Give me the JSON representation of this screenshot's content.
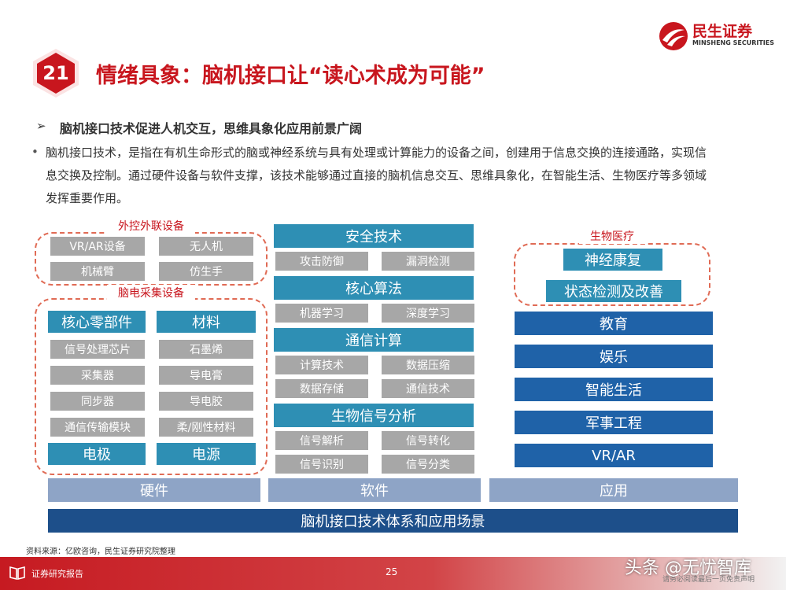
{
  "header": {
    "brand_cn": "民生证券",
    "brand_en": "MINSHENG SECURITIES",
    "colors": {
      "brand_red": "#c8161e"
    }
  },
  "title": {
    "number": "21",
    "text": "情绪具象：脑机接口让“读心术成为可能”"
  },
  "subheading": {
    "marker": "➢",
    "text": "脑机接口技术促进人机交互，思维具象化应用前景广阔"
  },
  "bullet": {
    "marker": "•",
    "text": "脑机接口技术，是指在有机生命形式的脑或神经系统与具有处理或计算能力的设备之间，创建用于信息交换的连接通路，实现信息交换及控制。通过硬件设备与软件支撑，该技术能够通过直接的脑机信息交互、思维具象化，在智能生活、生物医疗等多领域发挥重要作用。"
  },
  "diagram": {
    "external": {
      "label": "外控外联设备",
      "items": [
        "VR/AR设备",
        "无人机",
        "机械臂",
        "仿生手"
      ]
    },
    "eeg": {
      "label": "脑电采集设备",
      "col1_header": "核心零部件",
      "col1_items": [
        "信号处理芯片",
        "采集器",
        "同步器",
        "通信传输模块"
      ],
      "col1_footer": "电极",
      "col2_header": "材料",
      "col2_items": [
        "石墨烯",
        "导电膏",
        "导电胶",
        "柔/刚性材料"
      ],
      "col2_footer": "电源"
    },
    "software": [
      {
        "header": "安全技术",
        "items": [
          "攻击防御",
          "漏洞检测"
        ]
      },
      {
        "header": "核心算法",
        "items": [
          "机器学习",
          "深度学习"
        ]
      },
      {
        "header": "通信计算",
        "items": [
          "计算技术",
          "数据压缩",
          "数据存储",
          "通信技术"
        ]
      },
      {
        "header": "生物信号分析",
        "items": [
          "信号解析",
          "信号转化",
          "信号识别",
          "信号分类"
        ]
      }
    ],
    "bio": {
      "label": "生物医疗",
      "items": [
        "神经康复",
        "状态检测及改善"
      ]
    },
    "applications": [
      "教育",
      "娱乐",
      "智能生活",
      "军事工程",
      "VR/AR"
    ],
    "bottom_bars": [
      "硬件",
      "软件",
      "应用"
    ],
    "base": "脑机接口技术体系和应用场景"
  },
  "source": "资料来源：亿欧咨询，民生证券研究院整理",
  "footer": {
    "left_label": "证券研究报告",
    "page_number": "25",
    "disclaimer": "请务必阅读最后一页免责声明",
    "watermark": "头条 @无忧智库"
  }
}
